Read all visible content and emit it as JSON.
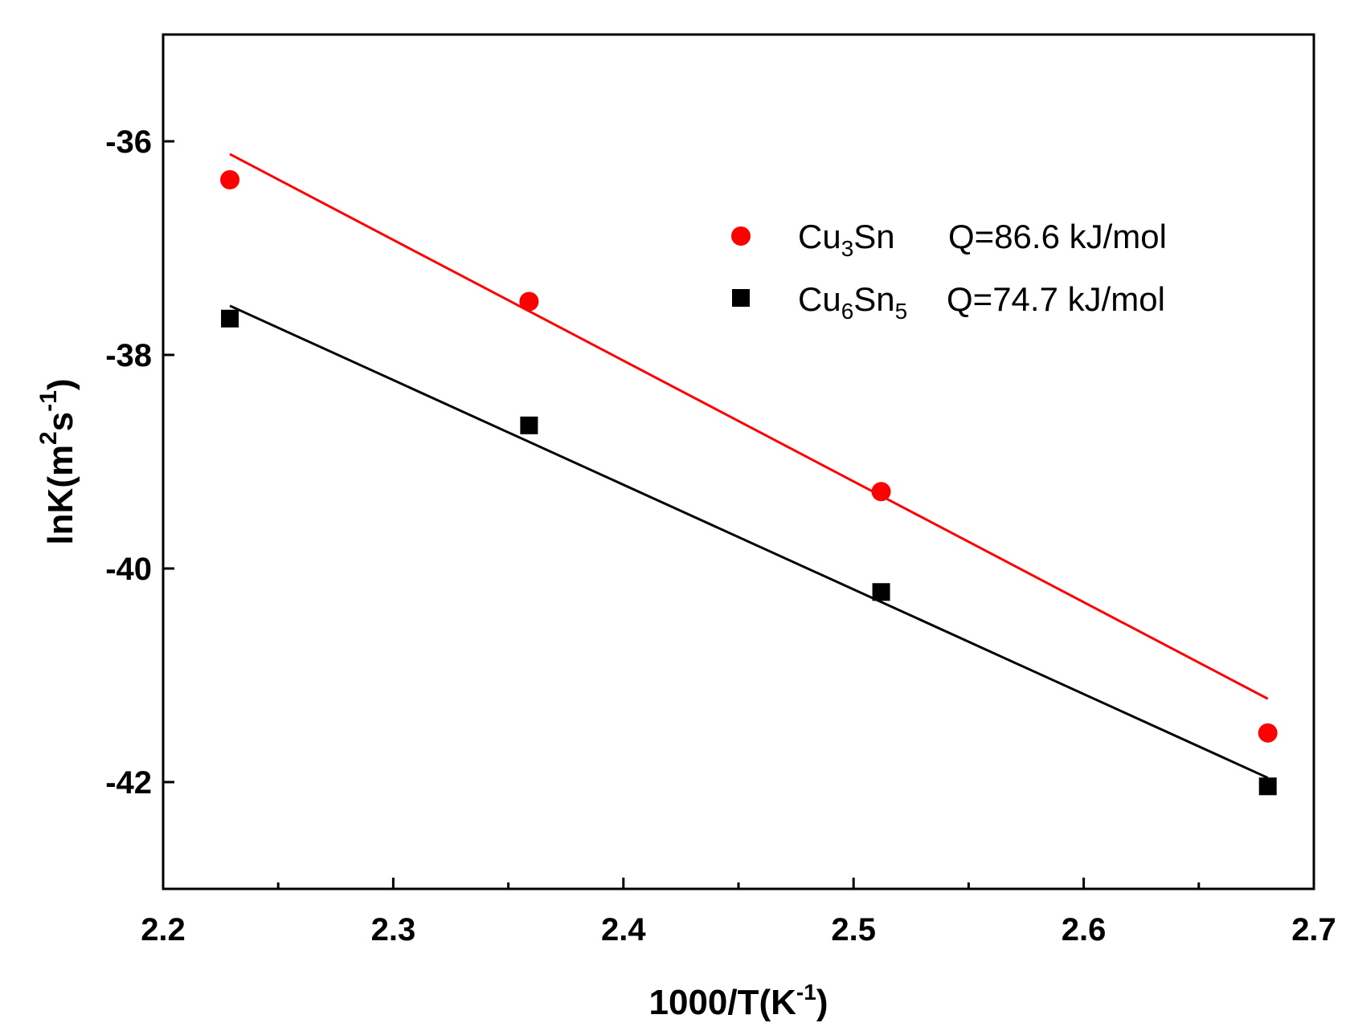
{
  "chart_data": {
    "type": "scatter",
    "title": "",
    "xlabel": {
      "main": "1000/T(K",
      "sup": "-1",
      "close": ")"
    },
    "ylabel": {
      "main": "lnK(m",
      "sup1": "2",
      "mid": "s",
      "sup2": "-1",
      "close": ")"
    },
    "xlim": [
      2.2,
      2.7
    ],
    "ylim": [
      -43,
      -35
    ],
    "x_ticks": [
      2.2,
      2.3,
      2.4,
      2.5,
      2.6,
      2.7
    ],
    "x_tick_labels": [
      "2.2",
      "2.3",
      "2.4",
      "2.5",
      "2.6",
      "2.7"
    ],
    "y_ticks": [
      -42,
      -40,
      -38,
      -36
    ],
    "y_tick_labels": [
      "-42",
      "-40",
      "-38",
      "-36"
    ],
    "legend_position": "top-right",
    "series": [
      {
        "name": "Cu3Sn",
        "legend": {
          "base": "Cu",
          "sub1": "3",
          "mid": "Sn",
          "sub2": "",
          "q": "Q=86.6 kJ/mol"
        },
        "marker": "circle",
        "color": "#ff0000",
        "x": [
          2.229,
          2.359,
          2.512,
          2.68
        ],
        "y": [
          -36.36,
          -37.5,
          -39.28,
          -41.54
        ],
        "fit": {
          "x": [
            2.229,
            2.68
          ],
          "y": [
            -36.12,
            -41.22
          ]
        }
      },
      {
        "name": "Cu6Sn5",
        "legend": {
          "base": "Cu",
          "sub1": "6",
          "mid": "Sn",
          "sub2": "5",
          "q": "Q=74.7 kJ/mol"
        },
        "marker": "square",
        "color": "#000000",
        "x": [
          2.229,
          2.359,
          2.512,
          2.68
        ],
        "y": [
          -37.66,
          -38.66,
          -40.22,
          -42.04
        ],
        "fit": {
          "x": [
            2.229,
            2.68
          ],
          "y": [
            -37.54,
            -41.96
          ]
        }
      }
    ]
  }
}
